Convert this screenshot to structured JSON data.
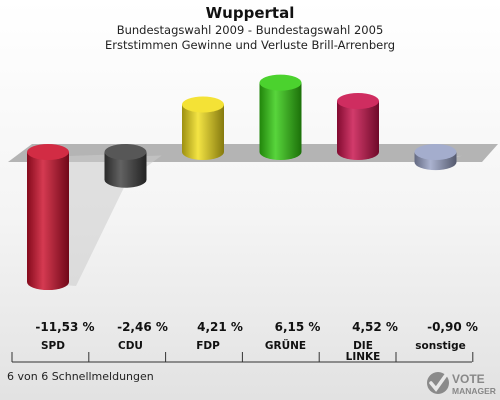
{
  "header": {
    "title": "Wuppertal",
    "subtitle1": "Bundestagswahl 2009 - Bundestagswahl 2005",
    "subtitle2": "Erststimmen Gewinne und Verluste Brill-Arrenberg"
  },
  "chart_data": {
    "type": "bar",
    "categories": [
      "SPD",
      "CDU",
      "FDP",
      "GRÜNE",
      "DIE LINKE",
      "sonstige"
    ],
    "values": [
      -11.53,
      -2.46,
      4.21,
      6.15,
      4.52,
      -0.9
    ],
    "value_labels": [
      "-11,53 %",
      "-2,46 %",
      "4,21 %",
      "6,15 %",
      "4,52 %",
      "-0,90 %"
    ],
    "colors": [
      "#cc0f2b",
      "#404040",
      "#f2de1b",
      "#33cc11",
      "#c8104a",
      "#98a2c6"
    ],
    "title": "",
    "xlabel": "",
    "ylabel": "",
    "grid": false,
    "legend": "none"
  },
  "footer": {
    "text": "6 von 6 Schnellmeldungen"
  },
  "logo": {
    "line1": "VOTE",
    "line2": "MANAGER"
  }
}
